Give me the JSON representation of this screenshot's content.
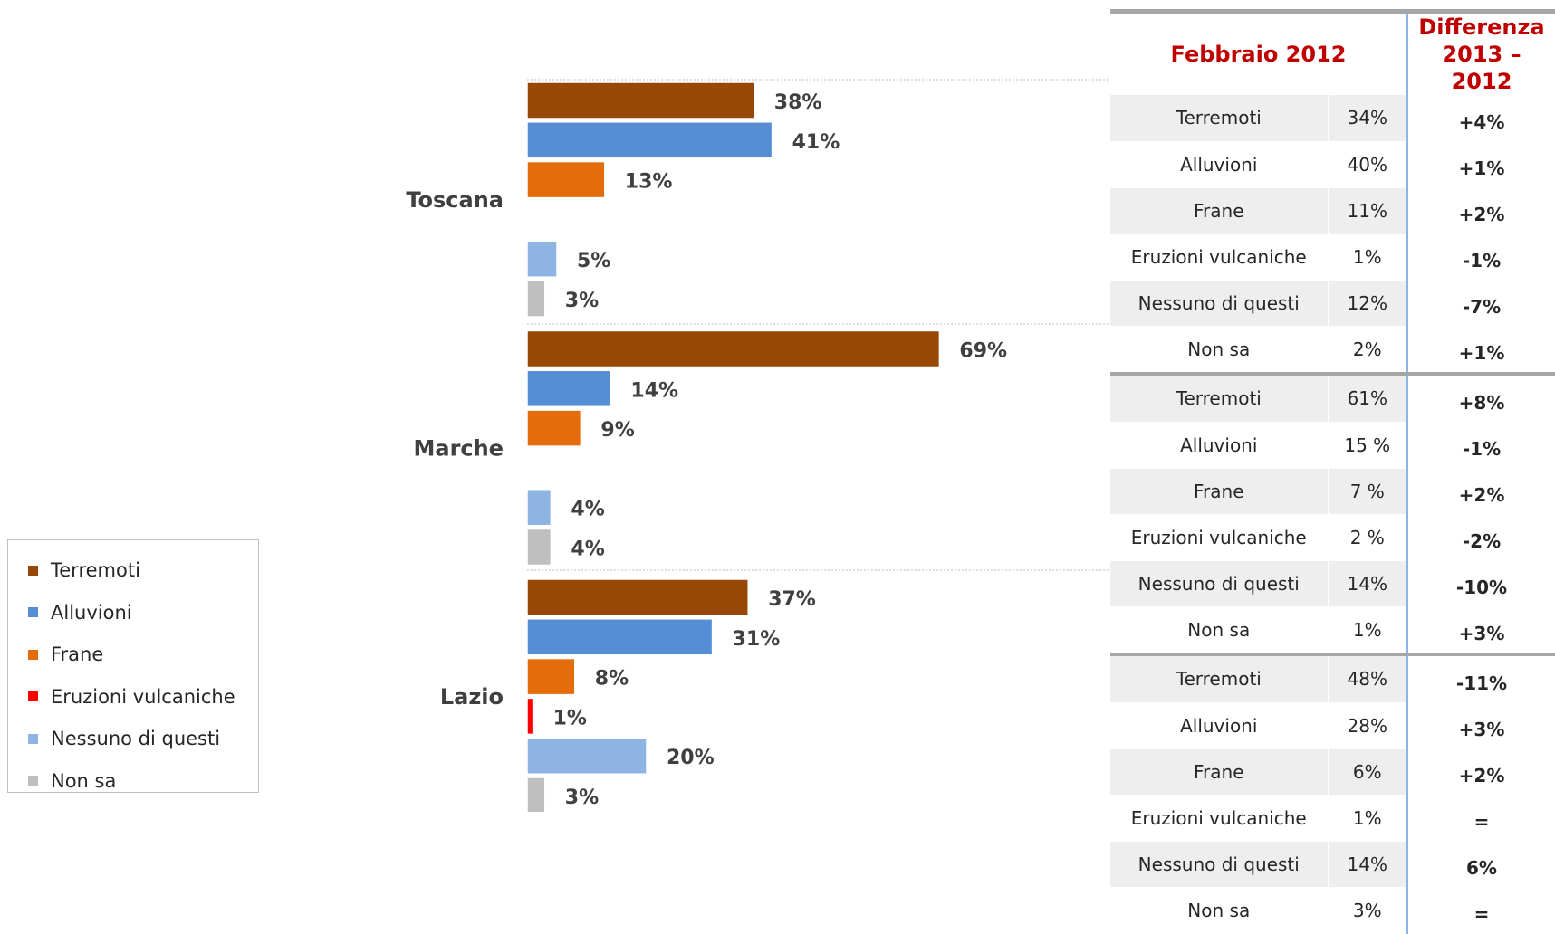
{
  "colors": {
    "Terremoti": "#974706",
    "Alluvioni": "#558ed5",
    "Frane": "#e46c0a",
    "Eruzioni vulcaniche": "#ff0000",
    "Nessuno di questi": "#8eb4e3",
    "Non sa": "#bfbfbf"
  },
  "chart_data": {
    "type": "bar",
    "orientation": "horizontal",
    "xlim": [
      0,
      100
    ],
    "categories": [
      "Terremoti",
      "Alluvioni",
      "Frane",
      "Eruzioni vulcaniche",
      "Nessuno di questi",
      "Non sa"
    ],
    "groups": [
      {
        "region": "Toscana",
        "values": [
          38,
          41,
          13,
          0,
          5,
          3
        ],
        "labels": [
          "38%",
          "41%",
          "13%",
          "",
          "5%",
          "3%"
        ]
      },
      {
        "region": "Marche",
        "values": [
          69,
          14,
          9,
          0,
          4,
          4
        ],
        "labels": [
          "69%",
          "14%",
          "9%",
          "",
          "4%",
          "4%"
        ]
      },
      {
        "region": "Lazio",
        "values": [
          37,
          31,
          8,
          1,
          20,
          3
        ],
        "labels": [
          "37%",
          "31%",
          "8%",
          "1%",
          "20%",
          "3%"
        ]
      }
    ],
    "legend_position": "bottom-left"
  },
  "legend": {
    "items": [
      "Terremoti",
      "Alluvioni",
      "Frane",
      "Eruzioni vulcaniche",
      "Nessuno di questi",
      "Non sa"
    ]
  },
  "table": {
    "header_period": "Febbraio 2012",
    "header_diff_line1": "Differenza",
    "header_diff_line2": "2013 – 2012",
    "groups": [
      {
        "rows": [
          {
            "label": "Terremoti",
            "value": "34%",
            "diff": "+4%"
          },
          {
            "label": "Alluvioni",
            "value": "40%",
            "diff": "+1%"
          },
          {
            "label": "Frane",
            "value": "11%",
            "diff": "+2%"
          },
          {
            "label": "Eruzioni vulcaniche",
            "value": "1%",
            "diff": "-1%"
          },
          {
            "label": "Nessuno di questi",
            "value": "12%",
            "diff": "-7%"
          },
          {
            "label": "Non sa",
            "value": "2%",
            "diff": "+1%"
          }
        ]
      },
      {
        "rows": [
          {
            "label": "Terremoti",
            "value": "61%",
            "diff": "+8%"
          },
          {
            "label": "Alluvioni",
            "value": "15 %",
            "diff": "-1%"
          },
          {
            "label": "Frane",
            "value": "7 %",
            "diff": "+2%"
          },
          {
            "label": "Eruzioni vulcaniche",
            "value": "2 %",
            "diff": "-2%"
          },
          {
            "label": "Nessuno di questi",
            "value": "14%",
            "diff": "-10%"
          },
          {
            "label": "Non sa",
            "value": "1%",
            "diff": "+3%"
          }
        ]
      },
      {
        "rows": [
          {
            "label": "Terremoti",
            "value": "48%",
            "diff": "-11%"
          },
          {
            "label": "Alluvioni",
            "value": "28%",
            "diff": "+3%"
          },
          {
            "label": "Frane",
            "value": "6%",
            "diff": "+2%"
          },
          {
            "label": "Eruzioni vulcaniche",
            "value": "1%",
            "diff": "="
          },
          {
            "label": "Nessuno di questi",
            "value": "14%",
            "diff": "6%"
          },
          {
            "label": "Non sa",
            "value": "3%",
            "diff": "="
          }
        ]
      }
    ]
  }
}
